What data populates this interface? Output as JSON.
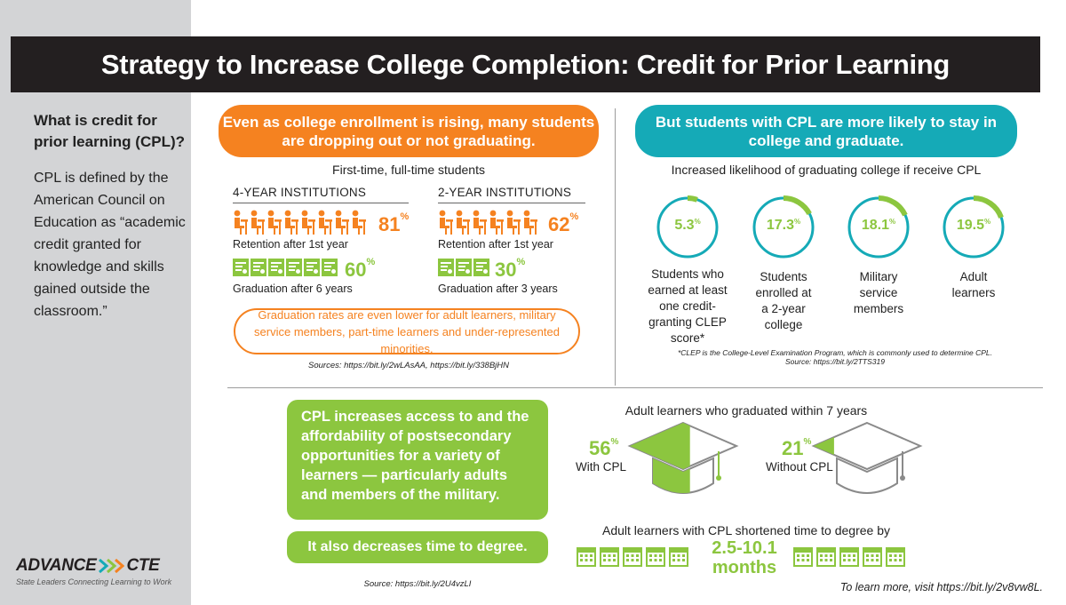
{
  "title": "Strategy to Increase College Completion: Credit for Prior Learning",
  "sidebar": {
    "question": "What is credit for prior learning (CPL)?",
    "definition": "CPL is defined by the American Council on Education as “academic credit granted for knowledge and skills gained outside the classroom.”",
    "logo_main": "ADVANCE",
    "logo_sub": "CTE",
    "logo_tagline": "State Leaders Connecting Learning to Work"
  },
  "enrollment": {
    "headline": "Even as college enrollment is rising, many students are dropping out or not graduating.",
    "subhead": "First-time, full-time students",
    "four_year": {
      "heading": "4-YEAR INSTITUTIONS",
      "retention": {
        "value": "81",
        "unit": "%",
        "label": "Retention after 1st year"
      },
      "graduation": {
        "value": "60",
        "unit": "%",
        "label": "Graduation after 6 years"
      }
    },
    "two_year": {
      "heading": "2-YEAR INSTITUTIONS",
      "retention": {
        "value": "62",
        "unit": "%",
        "label": "Retention after 1st year"
      },
      "graduation": {
        "value": "30",
        "unit": "%",
        "label": "Graduation after 3 years"
      }
    },
    "note": "Graduation rates are even lower for adult learners, military service members, part-time learners and under-represented minorities.",
    "sources": "Sources: https://bit.ly/2wLAsAA, https://bit.ly/338BjHN"
  },
  "likelihood": {
    "headline": "But students with CPL are more likely to stay in college and graduate.",
    "subhead": "Increased likelihood of graduating college if receive CPL",
    "items": [
      {
        "value": "5.3",
        "unit": "%",
        "percent": 5.3,
        "label": "Students who earned at least one credit-granting CLEP score*"
      },
      {
        "value": "17.3",
        "unit": "%",
        "percent": 17.3,
        "label": "Students enrolled at a 2-year college"
      },
      {
        "value": "18.1",
        "unit": "%",
        "percent": 18.1,
        "label": "Military service members"
      },
      {
        "value": "19.5",
        "unit": "%",
        "percent": 19.5,
        "label": "Adult learners"
      }
    ],
    "footnote": "*CLEP is the College-Level Examination Program, which is commonly used to determine CPL.",
    "source": "Source: https://bit.ly/2TTS319"
  },
  "access": {
    "statement": "CPL increases access to and the affordability of postsecondary opportunities for a variety of learners — particularly adults and members of the military.",
    "time_statement": "It also decreases time to degree.",
    "source": "Source: https://bit.ly/2U4vzLI"
  },
  "graduated": {
    "heading": "Adult learners who graduated within 7 years",
    "with_cpl": {
      "value": "56",
      "unit": "%",
      "percent": 56,
      "label": "With CPL"
    },
    "without_cpl": {
      "value": "21",
      "unit": "%",
      "percent": 21,
      "label": "Without CPL"
    }
  },
  "time_to_degree": {
    "heading": "Adult learners with CPL shortened time to degree by",
    "value": "2.5-10.1",
    "unit": "months"
  },
  "learn_more": "To learn more, visit https://bit.ly/2v8vw8L.",
  "colors": {
    "orange": "#f58220",
    "teal": "#15aab7",
    "green": "#8cc63f",
    "dark": "#231f20",
    "sidebar": "#d3d4d6"
  }
}
